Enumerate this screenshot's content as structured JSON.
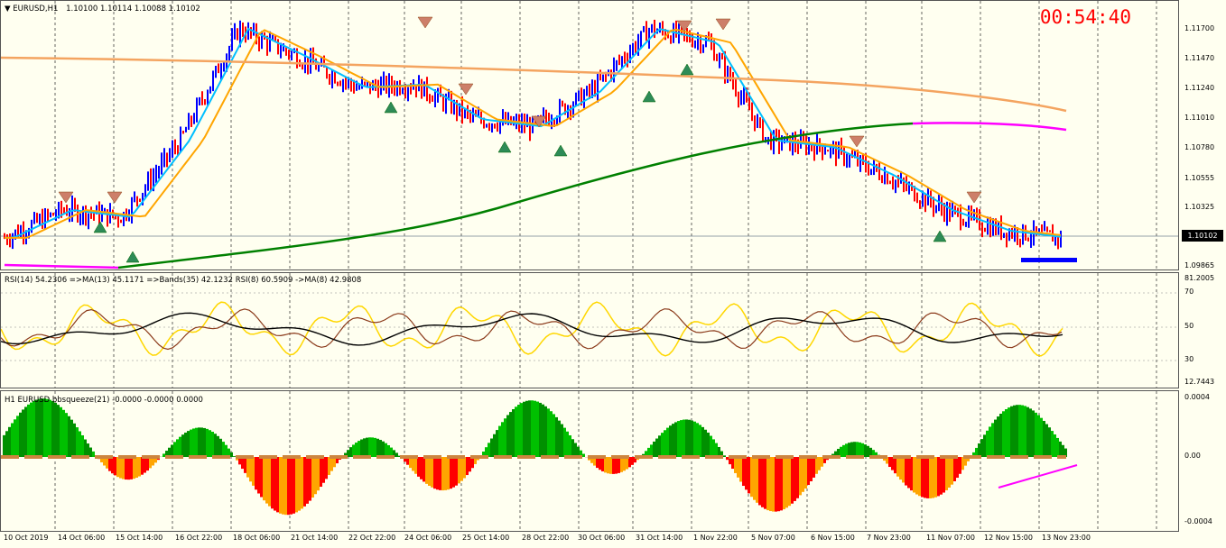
{
  "header": {
    "symbol_label": "EURUSD,H1",
    "ohlc": "1.10100 1.10114 1.10088 1.10102",
    "timer": "00:54:40",
    "current_price": "1.10102"
  },
  "price_scale": [
    "1.11700",
    "1.11470",
    "1.11240",
    "1.11010",
    "1.10780",
    "1.10555",
    "1.10325",
    "1.09865"
  ],
  "rsi_pane": {
    "label": "RSI(14) 54.2306  =>MA(13) 45.1171  =>Bands(35) 42.1232  RSI(8) 60.5909  ->MA(8) 42.9808",
    "scale": [
      "81.2005",
      "70",
      "50",
      "30",
      "12.7443"
    ]
  },
  "bb_pane": {
    "label": "H1 EURUSD bbsqueeze(21) -0.0000 -0.0000 0.0000",
    "scale": [
      "0.0004",
      "0.00",
      "-0.0004"
    ]
  },
  "time_axis": [
    "10 Oct 2019",
    "14 Oct 06:00",
    "15 Oct 14:00",
    "16 Oct 22:00",
    "18 Oct 06:00",
    "21 Oct 14:00",
    "22 Oct 22:00",
    "24 Oct 06:00",
    "25 Oct 14:00",
    "28 Oct 22:00",
    "30 Oct 06:00",
    "31 Oct 14:00",
    "1 Nov 22:00",
    "5 Nov 07:00",
    "6 Nov 15:00",
    "7 Nov 23:00",
    "11 Nov 07:00",
    "12 Nov 15:00",
    "13 Nov 23:00"
  ],
  "colors": {
    "up_bar": "#0000ff",
    "down_bar": "#ff0000",
    "ma_fast": "#00bfff",
    "ma_mid": "#ffa500",
    "ma_long": "#f4a460",
    "ma_200": "#008000",
    "magenta": "#ff00ff",
    "rsi_yellow": "#ffd700",
    "rsi_brown": "#8b3a1a",
    "rsi_black": "#000000",
    "bb_green": "#00c000",
    "bb_red": "#ff0000",
    "bb_orange": "#ffa500"
  },
  "chart_data": {
    "type": "line",
    "title": "EURUSD,H1",
    "ylim": [
      1.0986,
      1.118
    ],
    "x": [
      "10 Oct 2019",
      "14 Oct 06:00",
      "15 Oct 14:00",
      "16 Oct 22:00",
      "18 Oct 06:00",
      "21 Oct 14:00",
      "22 Oct 22:00",
      "24 Oct 06:00",
      "25 Oct 14:00",
      "28 Oct 22:00",
      "30 Oct 06:00",
      "31 Oct 14:00",
      "1 Nov 22:00",
      "5 Nov 07:00",
      "6 Nov 15:00",
      "7 Nov 23:00",
      "11 Nov 07:00",
      "12 Nov 15:00",
      "13 Nov 23:00"
    ],
    "series": [
      {
        "values": [
          1.101,
          1.103,
          1.1025,
          1.108,
          1.116,
          1.114,
          1.1118,
          1.112,
          1.1095,
          1.109,
          1.1115,
          1.116,
          1.115,
          1.108,
          1.1075,
          1.1055,
          1.103,
          1.1015,
          1.101
        ]
      }
    ]
  }
}
